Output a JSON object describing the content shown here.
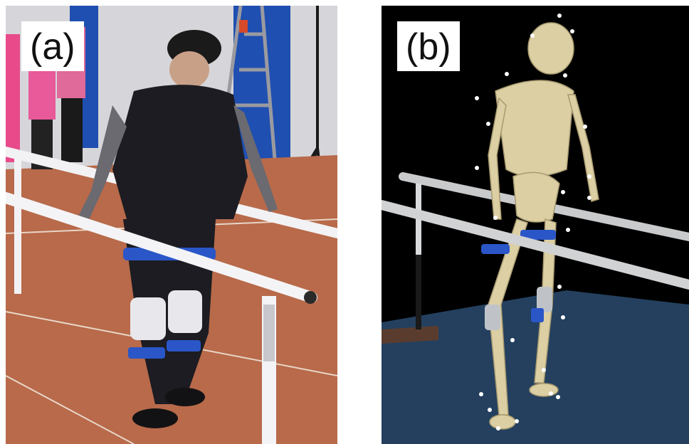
{
  "panels": [
    {
      "label": "(a)",
      "content": "photo"
    },
    {
      "label": "(b)",
      "content": "render"
    }
  ],
  "colors": {
    "track": "#b86a4a",
    "lane_line": "#e8d6c8",
    "wall": "#d8d8dc",
    "blue_panel": "#1f4fb0",
    "rail": "#e6e6ea",
    "clothing": "#1c1c22",
    "orthosis_blue": "#2a56c8",
    "bone": "#dccfa4",
    "floor_render": "#24405e",
    "marker": "#ffffff"
  }
}
